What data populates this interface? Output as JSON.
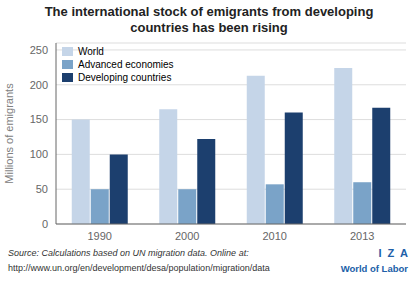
{
  "chart_data": {
    "type": "bar",
    "title": "The international stock of emigrants from developing\ncountries has been rising",
    "categories": [
      "1990",
      "2000",
      "2010",
      "2013"
    ],
    "series": [
      {
        "name": "World",
        "color": "#c5d5e8",
        "values": [
          150,
          165,
          213,
          224
        ]
      },
      {
        "name": "Advanced economies",
        "color": "#7aa3c8",
        "values": [
          50,
          50,
          57,
          60
        ]
      },
      {
        "name": "Developing countries",
        "color": "#1c3f6e",
        "values": [
          100,
          122,
          160,
          167
        ]
      }
    ],
    "y_label": "Millions of emigrants",
    "ylim": [
      0,
      260
    ],
    "yticks": [
      0,
      50,
      100,
      150,
      200,
      250
    ],
    "grid": true,
    "legend": "upper left",
    "annotations": [
      "Source: Calculations based on UN migration data. Online at:",
      "http://www.un.org/en/development/desa/population/migration/data",
      "I  Z  A",
      "World of Labor"
    ]
  }
}
